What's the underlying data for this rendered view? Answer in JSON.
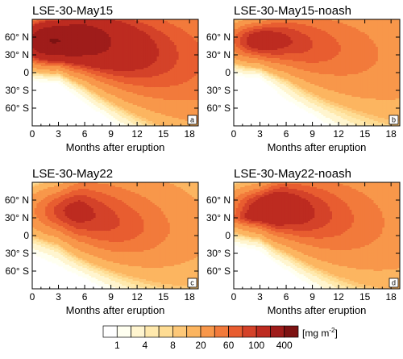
{
  "chart_data": {
    "type": "heatmap",
    "levels": [
      1,
      2,
      4,
      6,
      8,
      10,
      20,
      40,
      60,
      80,
      100,
      200,
      400
    ],
    "colorbar": {
      "tick_labels": [
        "1",
        "4",
        "8",
        "20",
        "60",
        "100",
        "400"
      ],
      "unit_label": "[mg m",
      "unit_exponent": "-2",
      "unit_close": "]",
      "colors": [
        "#fffff0",
        "#fff5cf",
        "#ffe9ad",
        "#fedc93",
        "#fdc878",
        "#fcb560",
        "#f8974a",
        "#f27a3b",
        "#e85d30",
        "#d44229",
        "#bd2b20",
        "#9f1c1a",
        "#7d1212"
      ]
    },
    "x_ticks": [
      0,
      3,
      6,
      9,
      12,
      15,
      18
    ],
    "x_tick_labels": [
      "0",
      "3",
      "6",
      "9",
      "12",
      "15",
      "18"
    ],
    "xlim": [
      0,
      19
    ],
    "xlabel": "Months after eruption",
    "y_ticks": [
      60,
      30,
      0,
      -30,
      -60
    ],
    "y_tick_labels": [
      "60° N",
      "30° N",
      "0",
      "30° S",
      "60° S"
    ],
    "ylim": [
      -90,
      90
    ],
    "panels": [
      {
        "title": "LSE-30-May15",
        "label": "a",
        "field": {
          "A": 330,
          "lat0": 52,
          "t0": 2.4,
          "sy": 20,
          "st": 2.3,
          "tail": 0.38,
          "amp2": 110,
          "lat2": 60,
          "t2": 4.5,
          "sy2": 20,
          "st2": 3
        }
      },
      {
        "title": "LSE-30-May15-noash",
        "label": "b",
        "field": {
          "A": 135,
          "lat0": 54,
          "t0": 3.4,
          "sy": 20,
          "st": 2.6,
          "tail": 0.4,
          "amp2": 0,
          "lat2": 0,
          "t2": 0,
          "sy2": 1,
          "st2": 1
        }
      },
      {
        "title": "LSE-30-May22",
        "label": "c",
        "field": {
          "A": 112,
          "lat0": 42,
          "t0": 5.5,
          "sy": 25,
          "st": 3.6,
          "tail": 0.7,
          "amp2": 18,
          "lat2": 5,
          "t2": 10,
          "sy2": 30,
          "st2": 4
        }
      },
      {
        "title": "LSE-30-May22-noash",
        "label": "d",
        "field": {
          "A": 165,
          "lat0": 46,
          "t0": 5.0,
          "sy": 22,
          "st": 3.2,
          "tail": 0.62,
          "amp2": 35,
          "lat2": 30,
          "t2": 1.8,
          "sy2": 7,
          "st2": 1.6
        }
      }
    ]
  }
}
